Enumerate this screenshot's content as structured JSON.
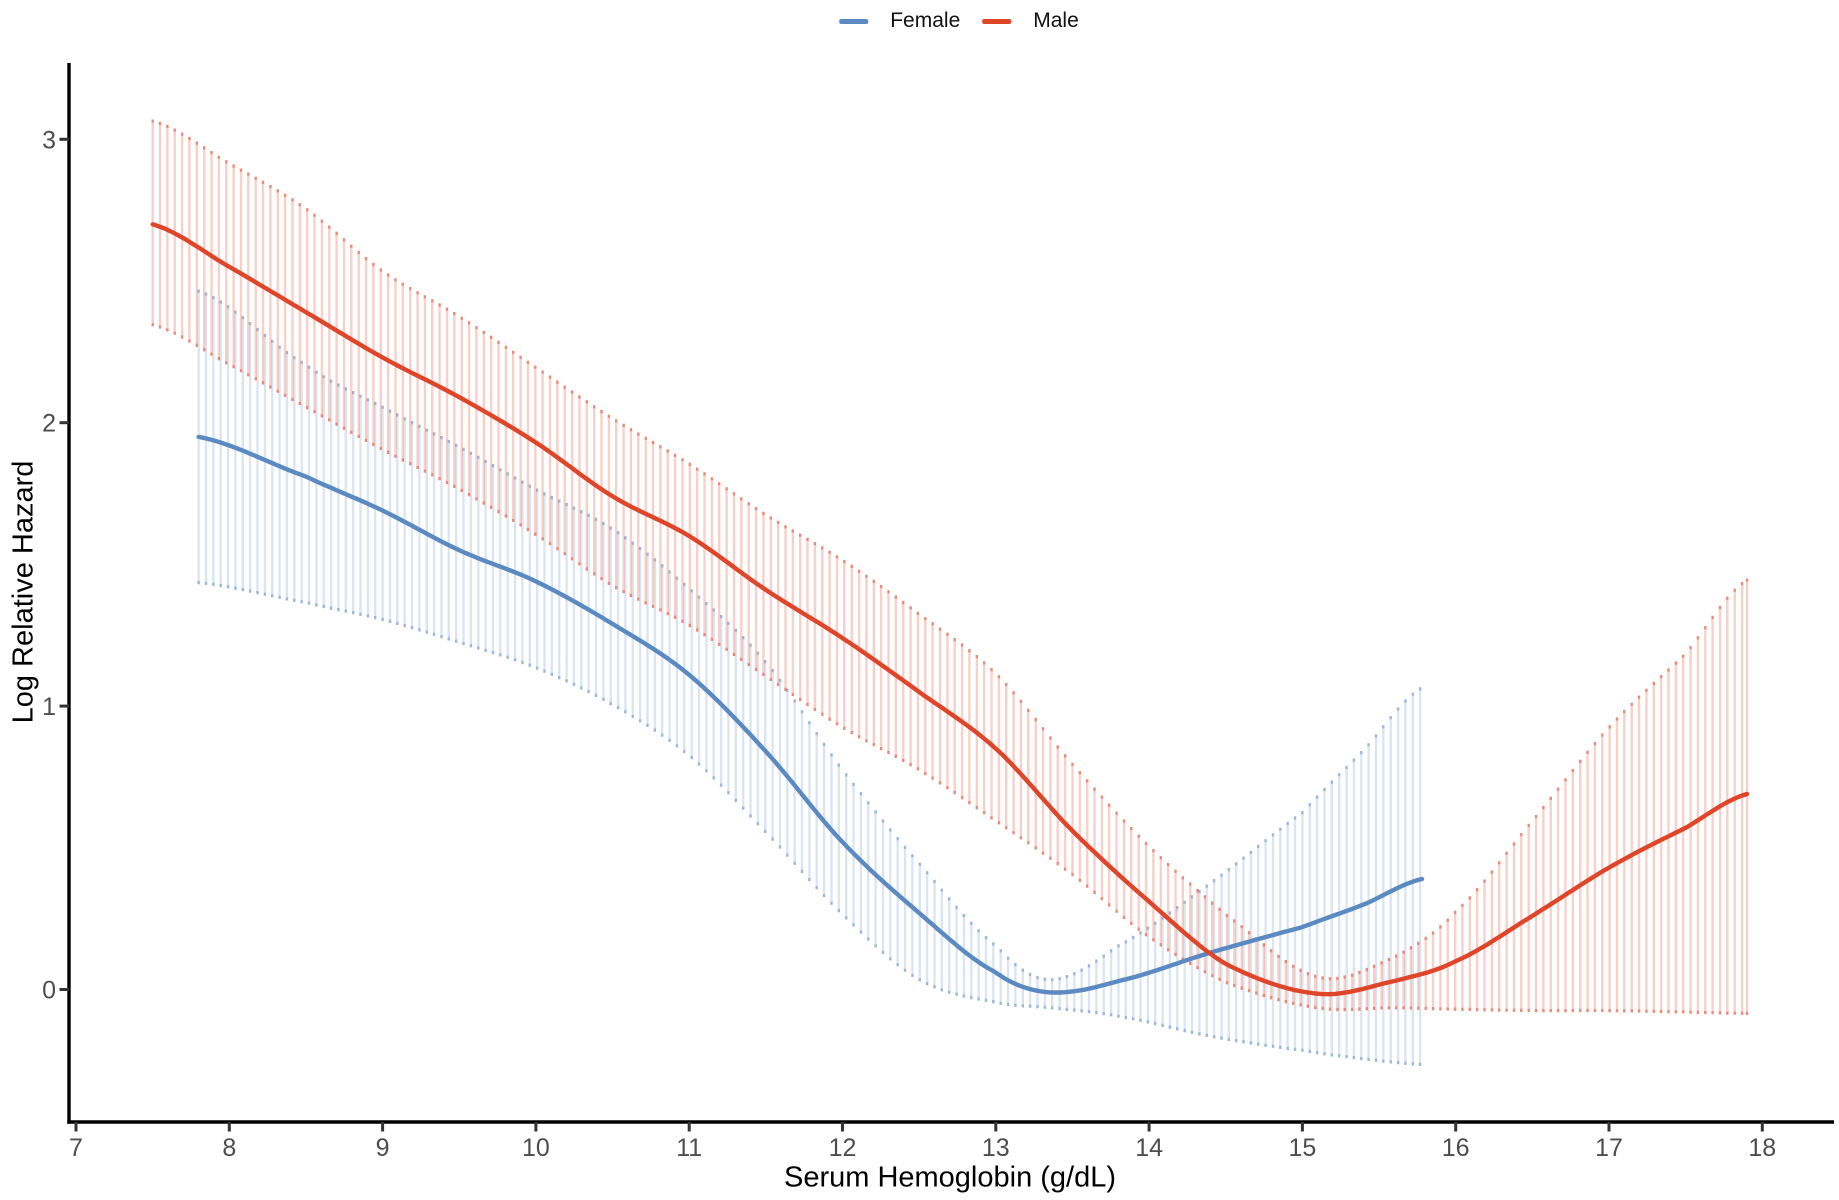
{
  "figure": {
    "background": "#ffffff"
  },
  "legend": {
    "items": [
      {
        "label": "Female",
        "color": "#5B8AC3"
      },
      {
        "label": "Male",
        "color": "#DF4529"
      }
    ]
  },
  "axes": {
    "x": {
      "label": "Serum Hemoglobin (g/dL)",
      "tick_values": [
        7,
        8,
        9,
        10,
        11,
        12,
        13,
        14,
        15,
        16,
        17,
        18
      ],
      "range": [
        6.95,
        18.55
      ]
    },
    "y": {
      "label": "Log Relative Hazard",
      "tick_values": [
        0,
        1,
        2,
        3
      ],
      "range": [
        -0.47,
        3.27
      ]
    }
  },
  "chart_data": {
    "type": "line",
    "title": "",
    "xlabel": "Serum Hemoglobin (g/dL)",
    "ylabel": "Log Relative Hazard",
    "legend_position": "top-center",
    "grid": false,
    "ci_style": "vertical-strokes",
    "series": [
      {
        "name": "Female",
        "color": "#5B8AC3",
        "band_opacity": 0.22,
        "tip_opacity": 0.5,
        "ci_stroke_step": 0.048,
        "x": [
          7.8,
          8.5,
          9.0,
          9.5,
          10.0,
          10.5,
          11.0,
          11.5,
          12.0,
          12.5,
          13.0,
          13.35,
          13.8,
          14.4,
          15.0,
          15.4,
          15.78
        ],
        "y": [
          1.95,
          1.81,
          1.69,
          1.55,
          1.44,
          1.29,
          1.11,
          0.84,
          0.52,
          0.27,
          0.06,
          -0.01,
          0.03,
          0.13,
          0.22,
          0.3,
          0.39
        ],
        "ci_lower": [
          1.43,
          1.36,
          1.3,
          1.22,
          1.13,
          1.0,
          0.82,
          0.55,
          0.26,
          0.03,
          -0.05,
          -0.07,
          -0.1,
          -0.17,
          -0.22,
          -0.25,
          -0.27
        ],
        "ci_upper": [
          2.47,
          2.21,
          2.06,
          1.92,
          1.77,
          1.63,
          1.42,
          1.16,
          0.78,
          0.45,
          0.16,
          0.04,
          0.16,
          0.38,
          0.63,
          0.85,
          1.07
        ]
      },
      {
        "name": "Male",
        "color": "#DF4529",
        "band_opacity": 0.25,
        "tip_opacity": 0.5,
        "ci_stroke_step": 0.048,
        "x": [
          7.5,
          8.0,
          8.5,
          9.0,
          9.5,
          10.0,
          10.5,
          11.0,
          11.5,
          12.0,
          12.5,
          13.0,
          13.5,
          14.0,
          14.5,
          15.1,
          15.6,
          16.0,
          16.5,
          17.0,
          17.5,
          17.9
        ],
        "y": [
          2.7,
          2.55,
          2.39,
          2.23,
          2.09,
          1.93,
          1.74,
          1.6,
          1.41,
          1.24,
          1.05,
          0.85,
          0.56,
          0.31,
          0.09,
          -0.015,
          0.03,
          0.1,
          0.26,
          0.43,
          0.57,
          0.69
        ],
        "ci_lower": [
          2.34,
          2.2,
          2.05,
          1.9,
          1.76,
          1.6,
          1.42,
          1.28,
          1.1,
          0.92,
          0.77,
          0.59,
          0.4,
          0.18,
          0.02,
          -0.07,
          -0.07,
          -0.075,
          -0.08,
          -0.08,
          -0.085,
          -0.09
        ],
        "ci_upper": [
          3.07,
          2.92,
          2.76,
          2.54,
          2.38,
          2.2,
          2.02,
          1.86,
          1.68,
          1.52,
          1.33,
          1.12,
          0.8,
          0.51,
          0.27,
          0.05,
          0.12,
          0.28,
          0.6,
          0.93,
          1.19,
          1.45
        ]
      }
    ]
  }
}
